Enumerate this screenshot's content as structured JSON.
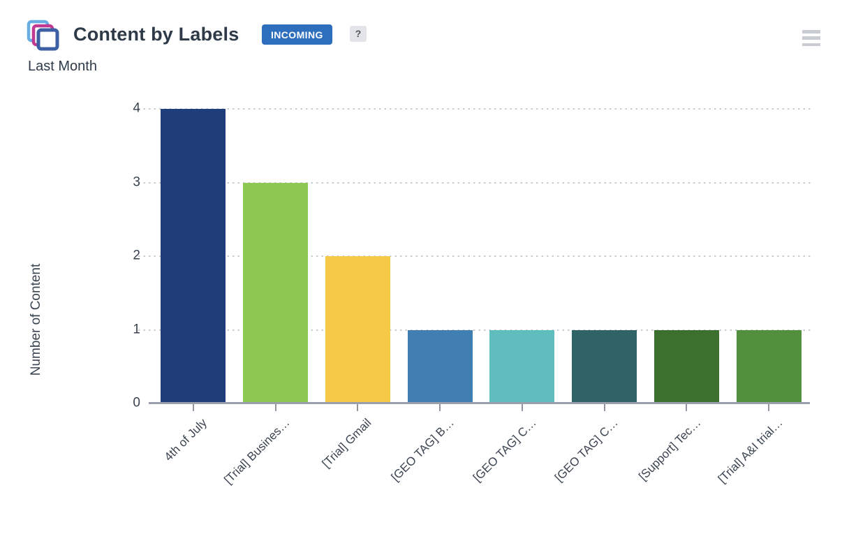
{
  "header": {
    "title": "Content by Labels",
    "badge_label": "INCOMING",
    "badge_color": "#2d6ebd",
    "help_label": "?",
    "subtitle": "Last Month",
    "icons": {
      "gadget_icon": "stacked-pages-icon",
      "menu_icon": "hamburger-menu-icon"
    }
  },
  "chart_data": {
    "type": "bar",
    "title": "Content by Labels",
    "subtitle": "Last Month",
    "categories": [
      "4th of July",
      "[Trial] Busines…",
      "[Trial] Gmail",
      "[GEO TAG] B…",
      "[GEO TAG] C…",
      "[GEO TAG] C…",
      "[Support] Tec…",
      "[Trial] A&I trial…"
    ],
    "values": [
      4,
      3,
      2,
      1,
      1,
      1,
      1,
      1
    ],
    "bar_colors": [
      "#1f3d78",
      "#8cc852",
      "#f6ca48",
      "#417fb3",
      "#5fbdbe",
      "#2f6366",
      "#3c702e",
      "#52903e"
    ],
    "xlabel": "",
    "ylabel": "Number of Content",
    "yticks": [
      0,
      1,
      2,
      3,
      4
    ],
    "ylim": [
      0,
      4
    ],
    "grid": "horizontal-dotted",
    "legend": "none"
  }
}
